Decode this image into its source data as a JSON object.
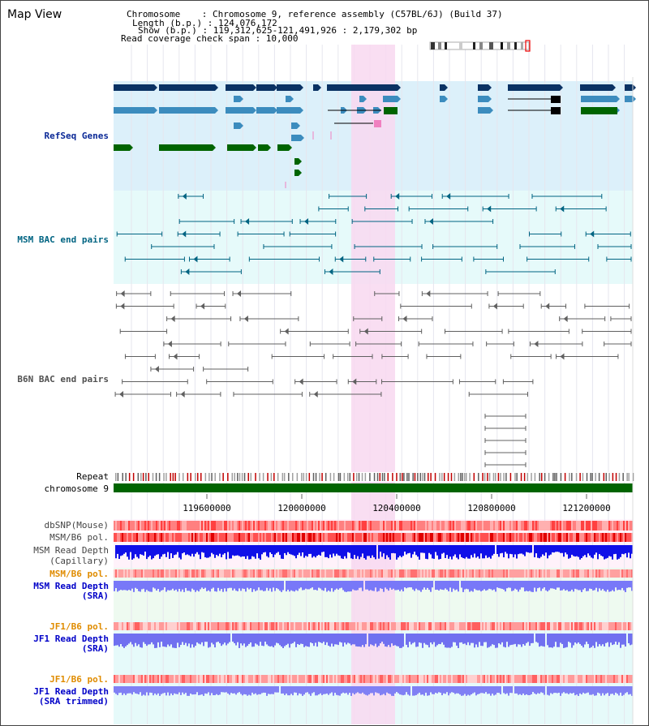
{
  "title": "Map View",
  "header": {
    "chromosome": "Chromosome    : Chromosome 9, reference assembly (C57BL/6J) (Build 37)",
    "length": "Length (b.p.) : 124,076,172",
    "show": "Show (b.p.) : 119,312,625-121,491,926 : 2,179,302 bp",
    "coverage": "Read coverage check span : 10,000"
  },
  "tracks": {
    "refseq": "RefSeq Genes",
    "msm_bac": "MSM BAC end pairs",
    "b6n_bac": "B6N BAC end pairs",
    "repeat": "Repeat",
    "chromosome": "chromosome 9",
    "dbsnp": "dbSNP(Mouse)",
    "msm_pol": "MSM/B6 pol.",
    "msm_depth_cap_1": "MSM Read Depth",
    "msm_depth_cap_2": "(Capillary)",
    "msm_pol_sra": "MSM/B6 pol.",
    "msm_depth_sra_1": "MSM Read Depth",
    "msm_depth_sra_2": "(SRA)",
    "jf1_pol": "JF1/B6 pol.",
    "jf1_depth_sra_1": "JF1 Read Depth",
    "jf1_depth_sra_2": "(SRA)",
    "jf1_pol_2": "JF1/B6 pol.",
    "jf1_depth_trim_1": "JF1 Read Depth",
    "jf1_depth_trim_2": "(SRA trimmed)"
  },
  "axis_ticks": [
    "119600000",
    "120000000",
    "120400000",
    "120800000",
    "121200000"
  ],
  "colors": {
    "refseq_bg": "#dcf0fa",
    "msm_bac_bg": "#e6fafa",
    "highlight": "#f8d8f0",
    "gene_dark": "#0a3264",
    "gene_mid": "#3c8cbe",
    "gene_green": "#006400",
    "bac_msm": "#006482",
    "bac_b6n": "#606060",
    "chromosome": "#006400",
    "msm_label": "#0000c8",
    "pol_label": "#e08c00"
  }
}
